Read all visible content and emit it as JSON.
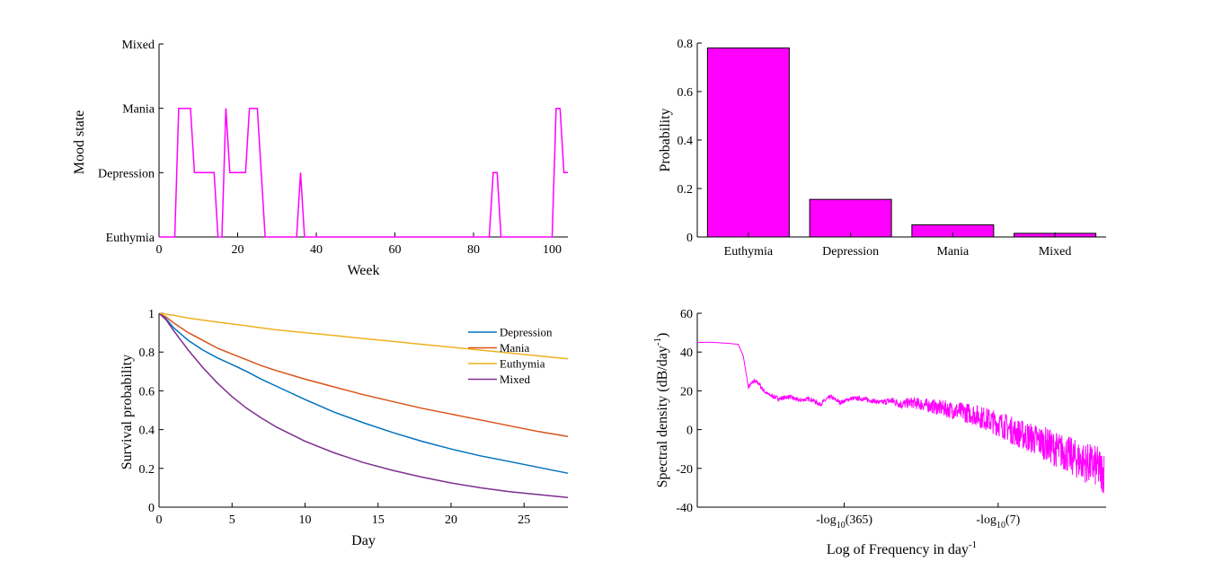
{
  "chart_data": [
    {
      "type": "line",
      "xlabel": "Week",
      "ylabel": "Mood state",
      "xlim": [
        0,
        104
      ],
      "xticks": [
        0,
        20,
        40,
        60,
        80,
        100
      ],
      "yticks": [
        0,
        1,
        2,
        3
      ],
      "ytick_labels": [
        "Euthymia",
        "Depression",
        "Mania",
        "Mixed"
      ],
      "ylim": [
        0,
        3
      ],
      "color": "#ff00ff",
      "x": [
        0,
        4,
        5,
        8,
        9,
        14,
        15,
        16,
        17,
        18,
        22,
        23,
        25,
        27,
        28,
        35,
        36,
        37,
        38,
        84,
        85,
        86,
        87,
        88,
        100,
        101,
        102,
        103,
        104
      ],
      "y": [
        0,
        0,
        2,
        2,
        1,
        1,
        0,
        0,
        2,
        1,
        1,
        2,
        2,
        0,
        0,
        0,
        1,
        0,
        0,
        0,
        1,
        1,
        0,
        0,
        0,
        2,
        2,
        1,
        1
      ]
    },
    {
      "type": "bar",
      "ylabel": "Probability",
      "categories": [
        "Euthymia",
        "Depression",
        "Mania",
        "Mixed"
      ],
      "values": [
        0.78,
        0.155,
        0.05,
        0.015
      ],
      "ylim": [
        0,
        0.8
      ],
      "yticks": [
        0,
        0.2,
        0.4,
        0.6,
        0.8
      ],
      "ytick_labels": [
        "0",
        "0.2",
        "0.4",
        "0.6",
        "0.8"
      ],
      "color": "#ff00ff"
    },
    {
      "type": "line",
      "xlabel": "Day",
      "ylabel": "Survival probability",
      "xlim": [
        0,
        28
      ],
      "ylim": [
        0,
        1
      ],
      "xticks": [
        0,
        5,
        10,
        15,
        20,
        25
      ],
      "yticks": [
        0,
        0.2,
        0.4,
        0.6,
        0.8,
        1
      ],
      "ytick_labels": [
        "0",
        "0.2",
        "0.4",
        "0.6",
        "0.8",
        "1"
      ],
      "legend": "top-right",
      "x": [
        0,
        0.5,
        1,
        2,
        3,
        4,
        5,
        6,
        7,
        8,
        10,
        12,
        14,
        16,
        18,
        20,
        22,
        24,
        26,
        28
      ],
      "series": [
        {
          "name": "Depression",
          "color": "#0072bd",
          "values": [
            1.0,
            0.97,
            0.925,
            0.86,
            0.81,
            0.77,
            0.735,
            0.7,
            0.66,
            0.625,
            0.555,
            0.49,
            0.435,
            0.385,
            0.34,
            0.3,
            0.265,
            0.235,
            0.205,
            0.175
          ]
        },
        {
          "name": "Mania",
          "color": "#d95319",
          "values": [
            1.0,
            0.98,
            0.95,
            0.9,
            0.86,
            0.82,
            0.79,
            0.76,
            0.73,
            0.705,
            0.66,
            0.62,
            0.58,
            0.545,
            0.51,
            0.48,
            0.45,
            0.42,
            0.39,
            0.365
          ]
        },
        {
          "name": "Euthymia",
          "color": "#edb120",
          "values": [
            1.0,
            0.995,
            0.99,
            0.975,
            0.965,
            0.955,
            0.945,
            0.935,
            0.925,
            0.915,
            0.9,
            0.885,
            0.87,
            0.855,
            0.84,
            0.825,
            0.81,
            0.795,
            0.78,
            0.765
          ]
        },
        {
          "name": "Mixed",
          "color": "#7e2f8e",
          "values": [
            1.0,
            0.965,
            0.91,
            0.81,
            0.72,
            0.64,
            0.57,
            0.51,
            0.46,
            0.415,
            0.34,
            0.28,
            0.23,
            0.19,
            0.155,
            0.125,
            0.1,
            0.08,
            0.065,
            0.05
          ]
        }
      ]
    },
    {
      "type": "line",
      "xlabel": "Log of Frequency in day",
      "xlabel_sup": "-1",
      "ylabel": "Spectral density (dB/day",
      "ylabel_sup": "-1",
      "ylabel_end": ")",
      "xlim": [
        -4,
        0
      ],
      "xticks": [
        -2.562,
        -1.056
      ],
      "xtick_labels": [
        {
          "pre": "-log",
          "sub": "10",
          "post": "(365)"
        },
        {
          "pre": "-log",
          "sub": "10",
          "post": "(7)"
        }
      ],
      "ylim": [
        -40,
        60
      ],
      "yticks": [
        -40,
        -20,
        0,
        20,
        40,
        60
      ],
      "ytick_labels": [
        "-40",
        "-20",
        "0",
        "20",
        "40",
        "60"
      ],
      "color": "#ff00ff",
      "x": [
        -4.0,
        -3.85,
        -3.7,
        -3.6,
        -3.55,
        -3.5,
        -3.45,
        -3.4,
        -3.35,
        -3.3,
        -3.2,
        -3.1,
        -3.0,
        -2.9,
        -2.8,
        -2.7,
        -2.6,
        -2.5,
        -2.4,
        -2.3,
        -2.2,
        -2.1,
        -2.0,
        -1.9,
        -1.8,
        -1.7,
        -1.6,
        -1.5,
        -1.4,
        -1.3,
        -1.2,
        -1.1,
        -1.0,
        -0.9,
        -0.8,
        -0.7,
        -0.6,
        -0.5,
        -0.4,
        -0.3,
        -0.2,
        -0.1,
        -0.02
      ],
      "values": [
        45,
        45,
        44.5,
        44,
        38,
        22,
        25,
        24,
        20,
        18,
        16,
        17,
        15,
        16,
        13,
        17,
        14,
        16,
        16,
        15,
        14,
        15,
        13,
        14,
        13,
        12,
        11,
        10,
        9,
        8,
        6,
        4,
        2,
        -1,
        -3,
        -5,
        -7,
        -10,
        -12,
        -15,
        -17,
        -19,
        -22
      ],
      "noise_from_x": -2.2
    }
  ]
}
